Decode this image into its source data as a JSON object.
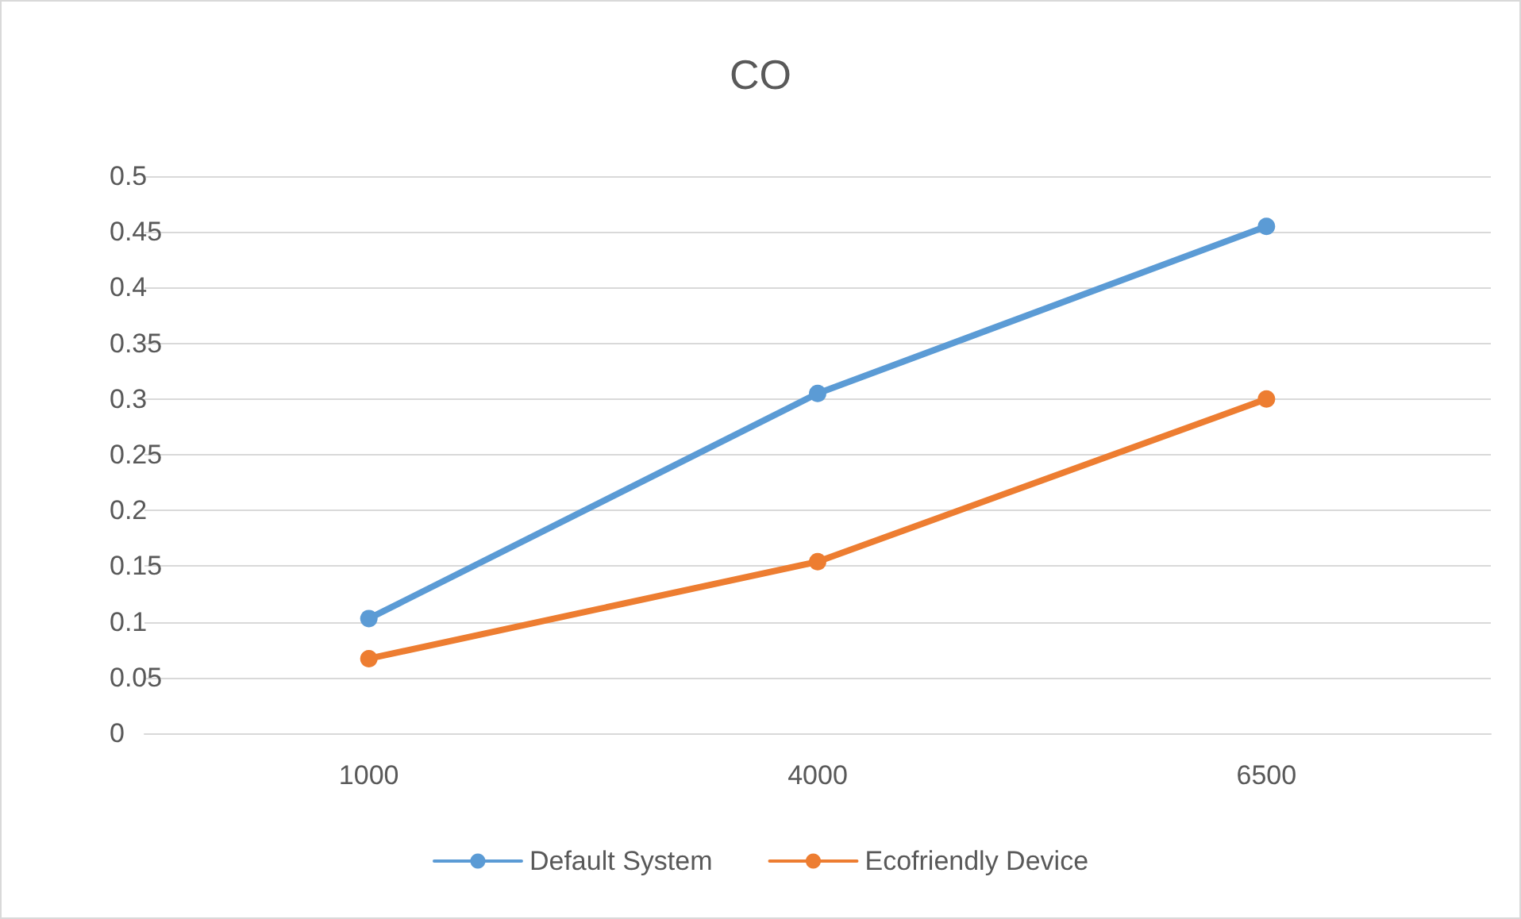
{
  "chart_data": {
    "type": "line",
    "title": "CO",
    "categories": [
      "1000",
      "4000",
      "6500"
    ],
    "series": [
      {
        "name": "Default System",
        "color": "#5b9bd5",
        "values": [
          0.103,
          0.305,
          0.455
        ]
      },
      {
        "name": "Ecofriendly Device",
        "color": "#ed7d31",
        "values": [
          0.067,
          0.154,
          0.3
        ]
      }
    ],
    "ylim": [
      0,
      0.5
    ],
    "yticks": [
      0,
      0.05,
      0.1,
      0.15,
      0.2,
      0.25,
      0.3,
      0.35,
      0.4,
      0.45,
      0.5
    ],
    "grid": "y",
    "legend": "bottom",
    "marker": "circle",
    "line_style": "solid"
  }
}
